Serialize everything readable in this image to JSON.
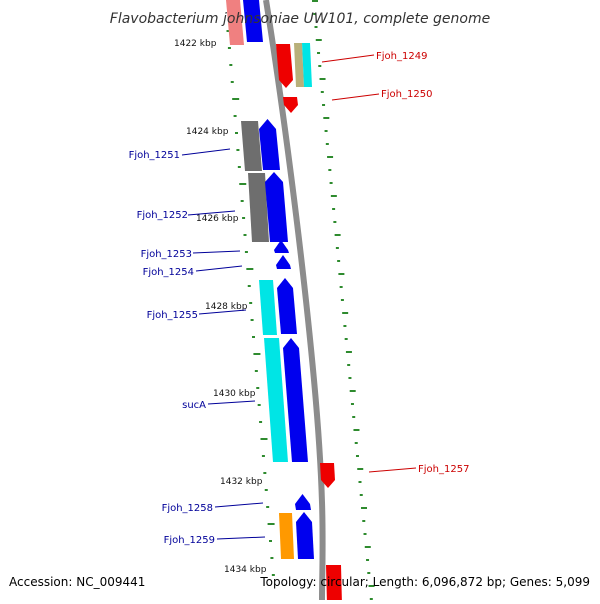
{
  "header": {
    "title": "Flavobacterium johnsoniae UW101, complete genome"
  },
  "footer": {
    "accession": "Accession: NC_009441",
    "topology": "Topology: circular; Length: 6,096,872 bp; Genes: 5,099"
  },
  "colors": {
    "backbone": "#8c8c8c",
    "tick": "#2e8b2e",
    "forward_label": "#cc0000",
    "reverse_label": "#000099",
    "blue_cds": "#0000ee",
    "red_cds": "#ee0000",
    "cyan_feature": "#00e5e5",
    "gray_feature": "#6e6e6e",
    "orange_feature": "#ff9900",
    "khaki_feature": "#b8b07a",
    "pink_feature": "#f08080"
  },
  "scale": {
    "unit": "kbp",
    "labels": [
      "1422 kbp",
      "1424 kbp",
      "1426 kbp",
      "1428 kbp",
      "1430 kbp",
      "1432 kbp",
      "1434 kbp"
    ]
  },
  "gene_labels": {
    "forward": [
      "Fjoh_1249",
      "Fjoh_1250",
      "Fjoh_1257"
    ],
    "reverse": [
      "Fjoh_1251",
      "Fjoh_1252",
      "Fjoh_1253",
      "Fjoh_1254",
      "Fjoh_1255",
      "sucA",
      "Fjoh_1258",
      "Fjoh_1259"
    ]
  }
}
